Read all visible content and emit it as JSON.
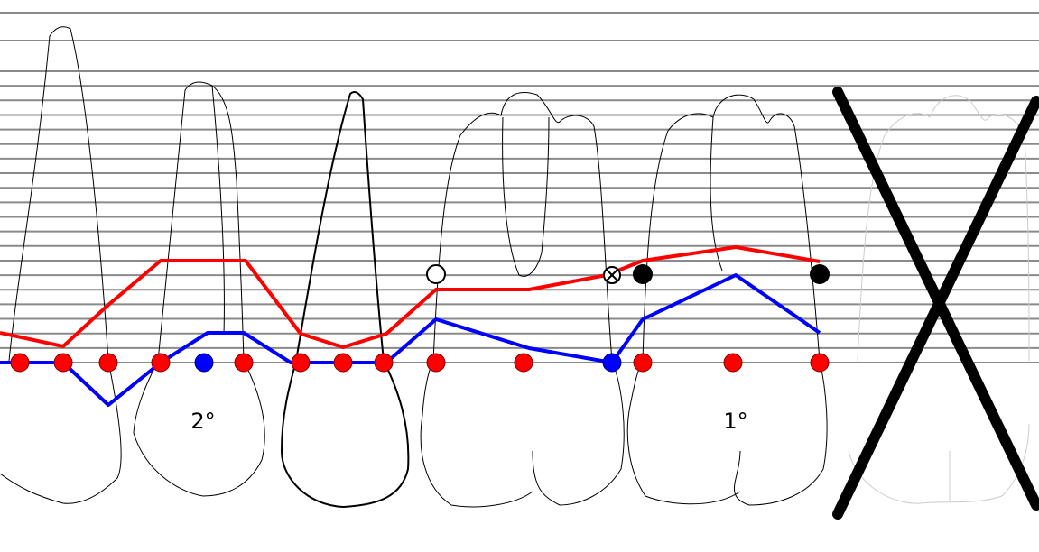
{
  "labels": {
    "tooth_2": "2°",
    "tooth_1": "1°"
  }
}
